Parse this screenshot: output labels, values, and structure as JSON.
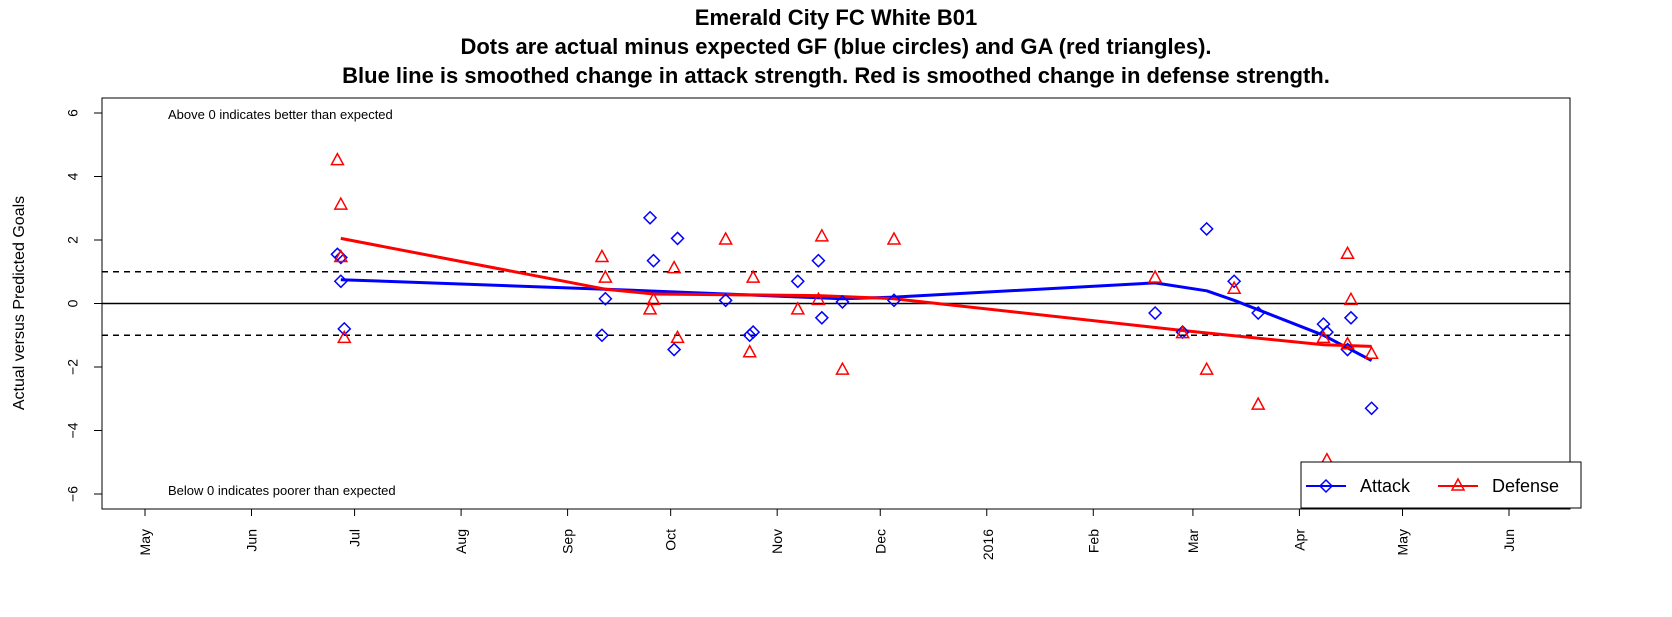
{
  "chart_data": {
    "type": "scatter",
    "title_lines": [
      "Emerald City FC White B01",
      "Dots are actual minus expected GF (blue circles) and GA (red triangles).",
      "Blue line is smoothed change in attack strength. Red is smoothed change in defense strength."
    ],
    "ylabel": "Actual versus Predicted Goals",
    "ylim": [
      -6.5,
      6.2
    ],
    "yticks": [
      -6,
      -4,
      -2,
      0,
      2,
      4,
      6
    ],
    "ytick_labels": [
      "−6",
      "−4",
      "−2",
      "0",
      "2",
      "4",
      "6"
    ],
    "xlim": [
      "2015-04-20",
      "2016-07-01"
    ],
    "xticks": [
      {
        "date": "2015-05-01",
        "label": "May"
      },
      {
        "date": "2015-06-01",
        "label": "Jun"
      },
      {
        "date": "2015-07-01",
        "label": "Jul"
      },
      {
        "date": "2015-08-01",
        "label": "Aug"
      },
      {
        "date": "2015-09-01",
        "label": "Sep"
      },
      {
        "date": "2015-10-01",
        "label": "Oct"
      },
      {
        "date": "2015-11-01",
        "label": "Nov"
      },
      {
        "date": "2015-12-01",
        "label": "Dec"
      },
      {
        "date": "2016-01-01",
        "label": "2016"
      },
      {
        "date": "2016-02-01",
        "label": "Feb"
      },
      {
        "date": "2016-03-01",
        "label": "Mar"
      },
      {
        "date": "2016-04-01",
        "label": "Apr"
      },
      {
        "date": "2016-05-01",
        "label": "May"
      },
      {
        "date": "2016-06-01",
        "label": "Jun"
      }
    ],
    "hlines": [
      {
        "y": 0,
        "style": "solid"
      },
      {
        "y": 1,
        "style": "dashed"
      },
      {
        "y": -1,
        "style": "dashed"
      }
    ],
    "annotations": {
      "top": "Above 0 indicates better than expected",
      "bottom": "Below 0 indicates poorer than expected"
    },
    "legend": {
      "position": "bottom-right",
      "entries": [
        {
          "label": "Attack",
          "color": "#0000ff",
          "marker": "diamond"
        },
        {
          "label": "Defense",
          "color": "#ff0000",
          "marker": "triangle"
        }
      ]
    },
    "series": [
      {
        "name": "Attack",
        "color": "#0000ff",
        "marker": "diamond",
        "points": [
          {
            "x": "2015-06-26",
            "y": 1.55
          },
          {
            "x": "2015-06-27",
            "y": 1.45
          },
          {
            "x": "2015-06-27",
            "y": 0.7
          },
          {
            "x": "2015-06-28",
            "y": -0.8
          },
          {
            "x": "2015-09-11",
            "y": -1.0
          },
          {
            "x": "2015-09-12",
            "y": 0.15
          },
          {
            "x": "2015-09-25",
            "y": 2.7
          },
          {
            "x": "2015-09-26",
            "y": 1.35
          },
          {
            "x": "2015-10-02",
            "y": -1.45
          },
          {
            "x": "2015-10-03",
            "y": 2.05
          },
          {
            "x": "2015-10-17",
            "y": 0.1
          },
          {
            "x": "2015-10-24",
            "y": -1.0
          },
          {
            "x": "2015-10-25",
            "y": -0.9
          },
          {
            "x": "2015-11-07",
            "y": 0.7
          },
          {
            "x": "2015-11-13",
            "y": 1.35
          },
          {
            "x": "2015-11-14",
            "y": -0.45
          },
          {
            "x": "2015-11-20",
            "y": 0.05
          },
          {
            "x": "2015-12-05",
            "y": 0.1
          },
          {
            "x": "2016-02-19",
            "y": -0.3
          },
          {
            "x": "2016-02-27",
            "y": -0.9
          },
          {
            "x": "2016-03-05",
            "y": 2.35
          },
          {
            "x": "2016-03-13",
            "y": 0.7
          },
          {
            "x": "2016-03-20",
            "y": -0.3
          },
          {
            "x": "2016-04-08",
            "y": -0.65
          },
          {
            "x": "2016-04-09",
            "y": -0.9
          },
          {
            "x": "2016-04-15",
            "y": -1.45
          },
          {
            "x": "2016-04-16",
            "y": -0.45
          },
          {
            "x": "2016-04-22",
            "y": -3.3
          }
        ]
      },
      {
        "name": "Defense",
        "color": "#ff0000",
        "marker": "triangle",
        "points": [
          {
            "x": "2015-06-26",
            "y": 4.5
          },
          {
            "x": "2015-06-27",
            "y": 3.1
          },
          {
            "x": "2015-06-27",
            "y": 1.45
          },
          {
            "x": "2015-06-28",
            "y": -1.1
          },
          {
            "x": "2015-09-11",
            "y": 1.45
          },
          {
            "x": "2015-09-12",
            "y": 0.8
          },
          {
            "x": "2015-09-25",
            "y": -0.2
          },
          {
            "x": "2015-09-26",
            "y": 0.1
          },
          {
            "x": "2015-10-02",
            "y": 1.1
          },
          {
            "x": "2015-10-03",
            "y": -1.1
          },
          {
            "x": "2015-10-17",
            "y": 2.0
          },
          {
            "x": "2015-10-24",
            "y": -1.55
          },
          {
            "x": "2015-10-25",
            "y": 0.8
          },
          {
            "x": "2015-11-07",
            "y": -0.2
          },
          {
            "x": "2015-11-13",
            "y": 0.1
          },
          {
            "x": "2015-11-14",
            "y": 2.1
          },
          {
            "x": "2015-11-20",
            "y": -2.1
          },
          {
            "x": "2015-12-05",
            "y": 2.0
          },
          {
            "x": "2016-02-19",
            "y": 0.8
          },
          {
            "x": "2016-02-27",
            "y": -0.95
          },
          {
            "x": "2016-03-05",
            "y": -2.1
          },
          {
            "x": "2016-03-13",
            "y": 0.45
          },
          {
            "x": "2016-03-20",
            "y": -3.2
          },
          {
            "x": "2016-04-08",
            "y": -1.1
          },
          {
            "x": "2016-04-09",
            "y": -4.95
          },
          {
            "x": "2016-04-15",
            "y": -1.3
          },
          {
            "x": "2016-04-15",
            "y": 1.55
          },
          {
            "x": "2016-04-16",
            "y": 0.1
          },
          {
            "x": "2016-04-22",
            "y": -1.6
          }
        ]
      }
    ],
    "smooth_lines": [
      {
        "name": "Attack",
        "color": "#0000ff",
        "points": [
          {
            "x": "2015-06-27",
            "y": 0.75
          },
          {
            "x": "2015-09-12",
            "y": 0.45
          },
          {
            "x": "2015-10-17",
            "y": 0.3
          },
          {
            "x": "2015-11-20",
            "y": 0.15
          },
          {
            "x": "2015-12-05",
            "y": 0.2
          },
          {
            "x": "2016-02-19",
            "y": 0.65
          },
          {
            "x": "2016-03-05",
            "y": 0.4
          },
          {
            "x": "2016-03-13",
            "y": 0.1
          },
          {
            "x": "2016-04-08",
            "y": -1.0
          },
          {
            "x": "2016-04-22",
            "y": -1.8
          }
        ]
      },
      {
        "name": "Defense",
        "color": "#ff0000",
        "points": [
          {
            "x": "2015-06-27",
            "y": 2.05
          },
          {
            "x": "2015-09-12",
            "y": 0.45
          },
          {
            "x": "2015-09-26",
            "y": 0.3
          },
          {
            "x": "2015-11-13",
            "y": 0.25
          },
          {
            "x": "2015-12-05",
            "y": 0.15
          },
          {
            "x": "2016-02-27",
            "y": -0.85
          },
          {
            "x": "2016-04-08",
            "y": -1.3
          },
          {
            "x": "2016-04-22",
            "y": -1.35
          }
        ]
      }
    ]
  }
}
